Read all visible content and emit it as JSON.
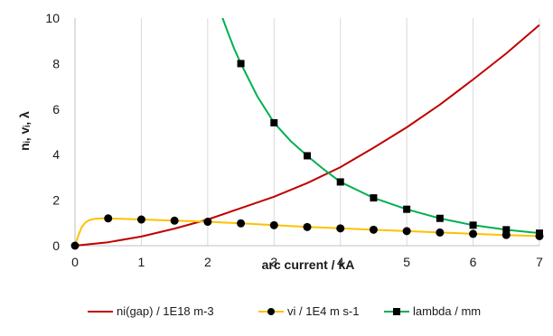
{
  "chart_data": {
    "type": "line",
    "title": "",
    "xlabel": "arc current / kA",
    "ylabel": "nᵢ, vᵢ, λ",
    "xlim": [
      0,
      7
    ],
    "ylim": [
      0,
      10
    ],
    "x_ticks": [
      0,
      1,
      2,
      3,
      4,
      5,
      6,
      7
    ],
    "y_ticks": [
      0,
      2,
      4,
      6,
      8,
      10
    ],
    "grid": "vertical",
    "legend_position": "bottom",
    "colors": {
      "ni": "#c00000",
      "vi": "#ffc000",
      "lambda": "#00b050",
      "marker": "#000000",
      "grid": "#d9d9d9"
    },
    "series": [
      {
        "name": "ni(gap) / 1E18 m-3",
        "key": "ni",
        "marker": "none",
        "x": [
          0,
          0.5,
          1,
          1.5,
          2,
          2.5,
          3,
          3.5,
          4,
          4.5,
          5,
          5.5,
          6,
          6.5,
          7
        ],
        "y": [
          0,
          0.15,
          0.4,
          0.75,
          1.15,
          1.65,
          2.15,
          2.75,
          3.45,
          4.3,
          5.2,
          6.2,
          7.3,
          8.45,
          9.7
        ]
      },
      {
        "name": "vi / 1E4 m s-1",
        "key": "vi",
        "marker": "circle",
        "curve_x": [
          0,
          0.05,
          0.1,
          0.15,
          0.2,
          0.25,
          0.3,
          0.4,
          0.5,
          1,
          1.5,
          2,
          2.5,
          3,
          3.5,
          4,
          4.5,
          5,
          5.5,
          6,
          6.5,
          7
        ],
        "curve_y": [
          0,
          0.45,
          0.8,
          1.0,
          1.1,
          1.15,
          1.18,
          1.2,
          1.2,
          1.15,
          1.1,
          1.05,
          0.98,
          0.9,
          0.82,
          0.76,
          0.7,
          0.64,
          0.58,
          0.52,
          0.47,
          0.42
        ],
        "x": [
          0,
          0.5,
          1,
          1.5,
          2,
          2.5,
          3,
          3.5,
          4,
          4.5,
          5,
          5.5,
          6,
          6.5,
          7
        ],
        "y": [
          0,
          1.2,
          1.15,
          1.1,
          1.05,
          0.98,
          0.9,
          0.82,
          0.76,
          0.7,
          0.64,
          0.58,
          0.52,
          0.47,
          0.42
        ]
      },
      {
        "name": "lambda / mm",
        "key": "lambda",
        "marker": "square",
        "curve_x": [
          2.2,
          2.3,
          2.4,
          2.5,
          2.75,
          3,
          3.25,
          3.5,
          3.75,
          4,
          4.5,
          5,
          5.5,
          6,
          6.5,
          7
        ],
        "curve_y": [
          10.2,
          9.4,
          8.65,
          8.0,
          6.55,
          5.4,
          4.6,
          3.95,
          3.35,
          2.8,
          2.1,
          1.6,
          1.2,
          0.9,
          0.7,
          0.55
        ],
        "x": [
          2.5,
          3,
          3.5,
          4,
          4.5,
          5,
          5.5,
          6,
          6.5,
          7
        ],
        "y": [
          8.0,
          5.4,
          3.95,
          2.8,
          2.1,
          1.6,
          1.2,
          0.9,
          0.7,
          0.55
        ]
      }
    ]
  }
}
